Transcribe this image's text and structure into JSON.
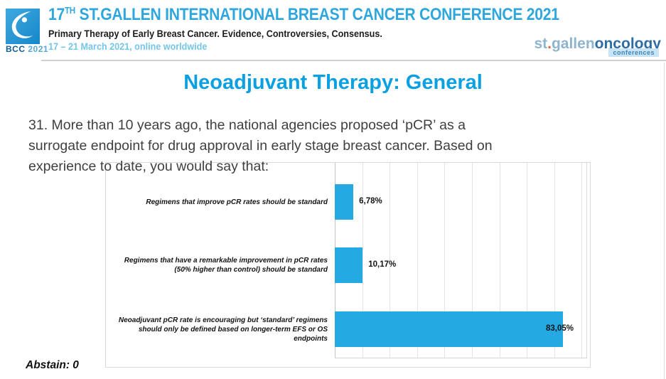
{
  "header": {
    "logo_badge": {
      "name": "BCC",
      "year": "2021"
    },
    "title_num": "17",
    "title_sup": "TH",
    "title_rest": " ST.GALLEN INTERNATIONAL BREAST CANCER CONFERENCE 2021",
    "subtitle": "Primary Therapy of Early Breast Cancer. Evidence, Controversies, Consensus.",
    "dates": "17 – 21 March 2021, online worldwide",
    "org_logo": {
      "part1": "st",
      "dot": ".",
      "part2": "gallen",
      "part3": "oncology",
      "tag": "conferences"
    }
  },
  "slide": {
    "title": "Neoadjuvant Therapy: General",
    "question_lines": [
      "31. More than 10 years ago, the national agencies proposed ‘pCR’ as a",
      "surrogate endpoint for drug approval in early stage breast cancer. Based on",
      "experience to date, you would say that:"
    ],
    "abstain": "Abstain: 0"
  },
  "chart_data": {
    "type": "bar",
    "orientation": "horizontal",
    "title": "",
    "categories": [
      "Regimens that improve pCR rates should be standard",
      "Regimens that have a remarkable improvement in pCR rates (50% higher than control) should be standard",
      "Neoadjuvant pCR rate is encouraging but ‘standard’ regimens should only be defined based on longer-term EFS or OS endpoints"
    ],
    "values": [
      6.78,
      10.17,
      83.05
    ],
    "value_labels": [
      "6,78%",
      "10,17%",
      "83,05%"
    ],
    "xlim": [
      0,
      92
    ],
    "gridline_step_pct": 10,
    "grid": true,
    "legend": false,
    "bar_color": "#24a9e3"
  },
  "colors": {
    "accent_blue": "#24a9e3",
    "title_blue": "#0aa0e2",
    "header_blue": "#2fa7dd",
    "dates_blue": "#74c6e9",
    "org_light": "#8fb4cd",
    "org_dark": "#2d6da3",
    "org_dot": "#e06a2b"
  }
}
